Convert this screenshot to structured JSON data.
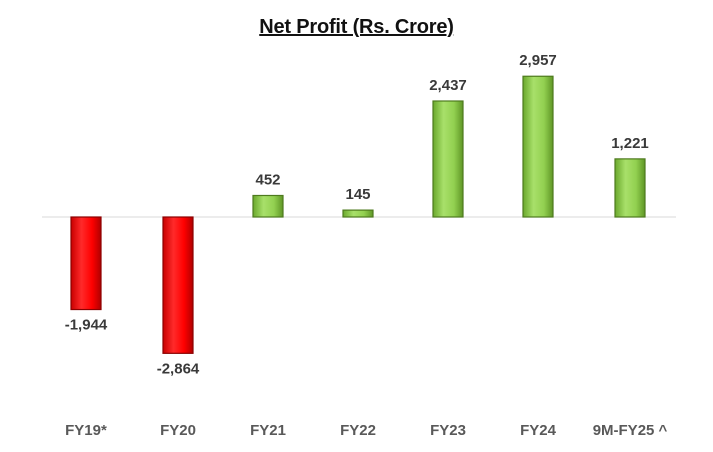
{
  "chart_data": {
    "type": "bar",
    "title": "Net Profit (Rs. Crore)",
    "xlabel": "",
    "ylabel": "",
    "categories": [
      "FY19*",
      "FY20",
      "FY21",
      "FY22",
      "FY23",
      "FY24",
      "9M-FY25 ^"
    ],
    "values": [
      -1944,
      -2864,
      452,
      145,
      2437,
      2957,
      1221
    ],
    "value_labels": [
      "-1,944",
      "-2,864",
      "452",
      "145",
      "2,437",
      "2,957",
      "1,221"
    ],
    "ylim": [
      -2864,
      2957
    ],
    "grid": false,
    "legend": "none",
    "colors": {
      "positive": "#92d050",
      "positive_edge": "#4e7a1e",
      "negative": "#ff0000",
      "negative_edge": "#8b0000",
      "label_text": "#3a3a3a",
      "axis_line": "#d9d9d9"
    }
  }
}
